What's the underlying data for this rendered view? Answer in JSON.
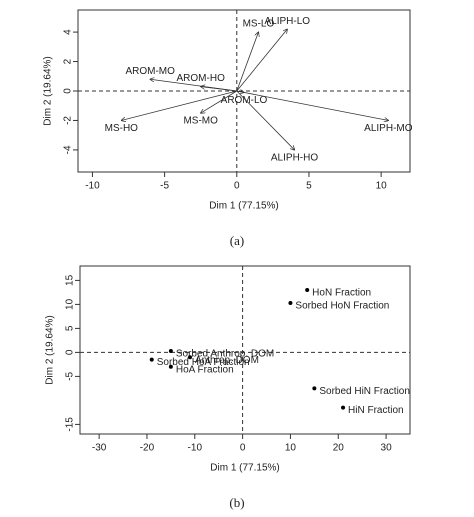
{
  "chart_data": [
    {
      "type": "biplot",
      "caption": "(a)",
      "x_label": "Dim 1 (77.15%)",
      "y_label": "Dim 2 (19.64%)",
      "labels": [
        "MS-LO",
        "ALIPH-LO",
        "AROM-MO",
        "AROM-HO",
        "AROM-LO",
        "MS-HO",
        "MS-MO",
        "ALIPH-MO",
        "ALIPH-HO"
      ],
      "x": [
        1.5,
        3.5,
        -6,
        -2.5,
        0.5,
        -8,
        -2.5,
        10.5,
        4
      ],
      "y": [
        4,
        4.2,
        0.8,
        0.3,
        -0.1,
        -2,
        -1.5,
        -2,
        -4
      ],
      "color": "#333333",
      "xlim": [
        -11,
        12
      ],
      "ylim": [
        -5.5,
        5.5
      ],
      "xticks": [
        -10,
        -5,
        0,
        5,
        10
      ],
      "yticks": [
        -4,
        -2,
        0,
        2,
        4
      ]
    },
    {
      "type": "scatter",
      "caption": "(b)",
      "x_label": "Dim 1 (77.15%)",
      "y_label": "Dim 2 (19.64%)",
      "labels": [
        "HoN Fraction",
        "Sorbed HoN Fraction",
        "Sorbed Anthrop. DOM",
        "Sorbed HoA Fraction",
        "Anthrop. DOM",
        "HoA Fraction",
        "Sorbed HiN Fraction",
        "HiN Fraction"
      ],
      "x": [
        13.5,
        10,
        -15,
        -19,
        -11,
        -15,
        15,
        21
      ],
      "y": [
        13,
        10.3,
        0.3,
        -1.5,
        -1,
        -3,
        -7.5,
        -11.5
      ],
      "color": "#000000",
      "xlim": [
        -34,
        35
      ],
      "ylim": [
        -17,
        18
      ],
      "xticks": [
        -30,
        -20,
        -10,
        0,
        10,
        20,
        30
      ],
      "yticks": [
        -15,
        -5,
        0,
        5,
        10,
        15
      ]
    }
  ]
}
